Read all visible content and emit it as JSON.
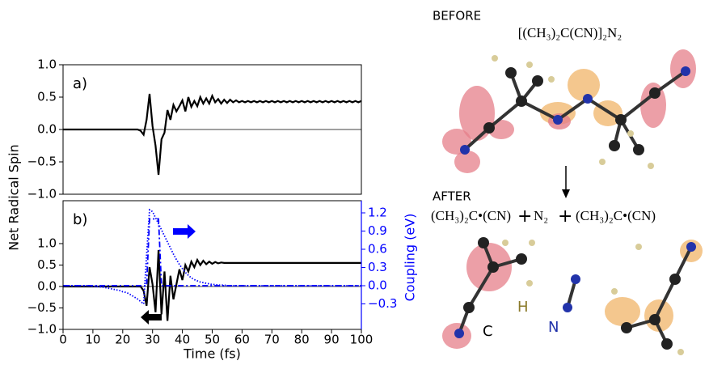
{
  "chart_data": [
    {
      "type": "line",
      "panel_label": "a)",
      "ylabel": "Net Radical Spin",
      "zero_line": true,
      "xlim": [
        0,
        100
      ],
      "ylim": [
        -1,
        1
      ],
      "yticks": [
        {
          "value": -1,
          "label": "−1.0"
        },
        {
          "value": -0.5,
          "label": "−0.5"
        },
        {
          "value": 0,
          "label": "0.0"
        },
        {
          "value": 0.5,
          "label": "0.5"
        },
        {
          "value": 1,
          "label": "1.0"
        }
      ],
      "x": [
        0,
        1,
        2,
        3,
        4,
        5,
        6,
        7,
        8,
        9,
        10,
        11,
        12,
        13,
        14,
        15,
        16,
        17,
        18,
        19,
        20,
        21,
        22,
        23,
        24,
        25,
        26,
        27,
        28,
        29,
        30,
        31,
        32,
        33,
        34,
        35,
        36,
        37,
        38,
        39,
        40,
        41,
        42,
        43,
        44,
        45,
        46,
        47,
        48,
        49,
        50,
        51,
        52,
        53,
        54,
        55,
        56,
        57,
        58,
        59,
        60,
        61,
        62,
        63,
        64,
        65,
        66,
        67,
        68,
        69,
        70,
        71,
        72,
        73,
        74,
        75,
        76,
        77,
        78,
        79,
        80,
        81,
        82,
        83,
        84,
        85,
        86,
        87,
        88,
        89,
        90,
        91,
        92,
        93,
        94,
        95,
        96,
        97,
        98,
        99,
        100
      ],
      "series": [
        {
          "color": "#000000",
          "style": "solid",
          "values": [
            0,
            0,
            0,
            0,
            0,
            0,
            0,
            0,
            0,
            0,
            0,
            0,
            0,
            0,
            0,
            0,
            0,
            0,
            0,
            0,
            0,
            0,
            0,
            0,
            0,
            0,
            -0.02,
            -0.08,
            0.15,
            0.55,
            0.05,
            -0.25,
            -0.7,
            -0.15,
            -0.05,
            0.3,
            0.15,
            0.38,
            0.28,
            0.36,
            0.45,
            0.28,
            0.5,
            0.35,
            0.44,
            0.36,
            0.5,
            0.4,
            0.48,
            0.4,
            0.52,
            0.42,
            0.47,
            0.4,
            0.46,
            0.41,
            0.46,
            0.42,
            0.45,
            0.42,
            0.44,
            0.42,
            0.44,
            0.42,
            0.44,
            0.42,
            0.44,
            0.42,
            0.44,
            0.42,
            0.44,
            0.42,
            0.44,
            0.42,
            0.44,
            0.42,
            0.44,
            0.42,
            0.44,
            0.42,
            0.44,
            0.42,
            0.44,
            0.42,
            0.44,
            0.42,
            0.44,
            0.42,
            0.44,
            0.42,
            0.44,
            0.42,
            0.44,
            0.42,
            0.44,
            0.42,
            0.44,
            0.42,
            0.44,
            0.42,
            0.44
          ]
        }
      ]
    },
    {
      "type": "line",
      "panel_label": "b)",
      "xlabel": "Time (fs)",
      "y2label": "Coupling (eV)",
      "zero_line": true,
      "xlim": [
        0,
        100
      ],
      "ylim": [
        -1,
        2
      ],
      "y2lim": [
        -0.72,
        1.4
      ],
      "xticks": [
        0,
        10,
        20,
        30,
        40,
        50,
        60,
        70,
        80,
        90,
        100
      ],
      "yticks": [
        {
          "value": -1,
          "label": "−1.0"
        },
        {
          "value": -0.5,
          "label": "−0.5"
        },
        {
          "value": 0,
          "label": "0.0"
        },
        {
          "value": 0.5,
          "label": "0.5"
        },
        {
          "value": 1,
          "label": "1.0"
        }
      ],
      "y2ticks": [
        {
          "value": -0.3,
          "label": "−0.3"
        },
        {
          "value": 0,
          "label": "0.0"
        },
        0.3,
        0.6,
        0.9,
        1.2
      ],
      "x": [
        0,
        1,
        2,
        3,
        4,
        5,
        6,
        7,
        8,
        9,
        10,
        11,
        12,
        13,
        14,
        15,
        16,
        17,
        18,
        19,
        20,
        21,
        22,
        23,
        24,
        25,
        26,
        27,
        28,
        29,
        30,
        31,
        32,
        33,
        34,
        35,
        36,
        37,
        38,
        39,
        40,
        41,
        42,
        43,
        44,
        45,
        46,
        47,
        48,
        49,
        50,
        51,
        52,
        53,
        54,
        55,
        56,
        57,
        58,
        59,
        60,
        61,
        62,
        63,
        64,
        65,
        66,
        67,
        68,
        69,
        70,
        71,
        72,
        73,
        74,
        75,
        76,
        77,
        78,
        79,
        80,
        81,
        82,
        83,
        84,
        85,
        86,
        87,
        88,
        89,
        90,
        91,
        92,
        93,
        94,
        95,
        96,
        97,
        98,
        99,
        100
      ],
      "series": [
        {
          "color": "#000000",
          "style": "solid",
          "values": [
            0,
            0,
            0,
            0,
            0,
            0,
            0,
            0,
            0,
            0,
            0,
            0,
            0,
            0,
            0,
            0,
            0,
            0,
            0,
            0,
            0,
            0,
            0,
            0,
            0,
            0,
            0,
            -0.1,
            -0.45,
            0.45,
            0.05,
            -0.6,
            0.85,
            -0.65,
            0.35,
            -0.8,
            0.25,
            -0.3,
            0.05,
            0.4,
            0.15,
            0.5,
            0.35,
            0.58,
            0.45,
            0.62,
            0.5,
            0.6,
            0.52,
            0.58,
            0.53,
            0.57,
            0.54,
            0.56,
            0.55,
            0.55,
            0.55,
            0.55,
            0.55,
            0.55,
            0.55,
            0.55,
            0.55,
            0.55,
            0.55,
            0.55,
            0.55,
            0.55,
            0.55,
            0.55,
            0.55,
            0.55,
            0.55,
            0.55,
            0.55,
            0.55,
            0.55,
            0.55,
            0.55,
            0.55,
            0.55,
            0.55,
            0.55,
            0.55,
            0.55,
            0.55,
            0.55,
            0.55,
            0.55,
            0.55,
            0.55,
            0.55,
            0.55,
            0.55,
            0.55,
            0.55,
            0.55,
            0.55,
            0.55,
            0.55,
            0.55
          ]
        },
        {
          "color": "#0000ff",
          "style": "dashed",
          "axis": "y2",
          "values": [
            0,
            0,
            0,
            0,
            0,
            0,
            0,
            0,
            0,
            0,
            0,
            0,
            0,
            0,
            0,
            0,
            0,
            0,
            0,
            0,
            0,
            0,
            0,
            0,
            0,
            0,
            0,
            0,
            0,
            1.1,
            1.1,
            1.1,
            1.1,
            0,
            0,
            0,
            0,
            0,
            0,
            0,
            0,
            0,
            0,
            0,
            0,
            0,
            0,
            0,
            0,
            0,
            0,
            0,
            0,
            0,
            0,
            0,
            0,
            0,
            0,
            0,
            0,
            0,
            0,
            0,
            0,
            0,
            0,
            0,
            0,
            0,
            0,
            0,
            0,
            0,
            0,
            0,
            0,
            0,
            0,
            0,
            0,
            0,
            0,
            0,
            0,
            0,
            0,
            0,
            0,
            0,
            0,
            0,
            0,
            0,
            0,
            0,
            0,
            0,
            0,
            0,
            0
          ]
        },
        {
          "color": "#0000ff",
          "style": "dotted",
          "axis": "y2",
          "values": [
            0,
            0,
            0,
            0,
            0,
            0,
            0,
            0,
            0,
            0,
            -0.01,
            -0.01,
            -0.02,
            -0.02,
            -0.03,
            -0.04,
            -0.05,
            -0.06,
            -0.07,
            -0.08,
            -0.1,
            -0.11,
            -0.13,
            -0.16,
            -0.19,
            -0.22,
            -0.26,
            -0.3,
            0.5,
            1.25,
            1.22,
            1.12,
            1.02,
            0.92,
            0.82,
            0.72,
            0.62,
            0.52,
            0.43,
            0.35,
            0.28,
            0.22,
            0.17,
            0.13,
            0.1,
            0.08,
            0.06,
            0.05,
            0.04,
            0.03,
            0.02,
            0.02,
            0.01,
            0.01,
            0.01,
            0,
            0,
            0,
            0,
            0,
            0,
            0,
            0,
            0,
            0,
            0,
            0,
            0,
            0,
            0,
            0,
            0,
            0,
            0,
            0,
            0,
            0,
            0,
            0,
            0,
            0,
            0,
            0,
            0,
            0,
            0,
            0,
            0,
            0,
            0,
            0,
            0,
            0,
            0,
            0,
            0,
            0,
            0,
            0,
            0,
            0
          ]
        }
      ]
    }
  ],
  "figure": {
    "before": "BEFORE",
    "before_formula": "[(CH₃)₂C(CN)]₂N₂",
    "after": "AFTER",
    "after_formula": [
      "(CH₃)₂C•(CN)",
      "+",
      "N₂",
      "+",
      "(CH₃)₂C•(CN)"
    ],
    "atom_labels": {
      "carbon": "C",
      "hydrogen": "H",
      "nitrogen": "N"
    }
  }
}
